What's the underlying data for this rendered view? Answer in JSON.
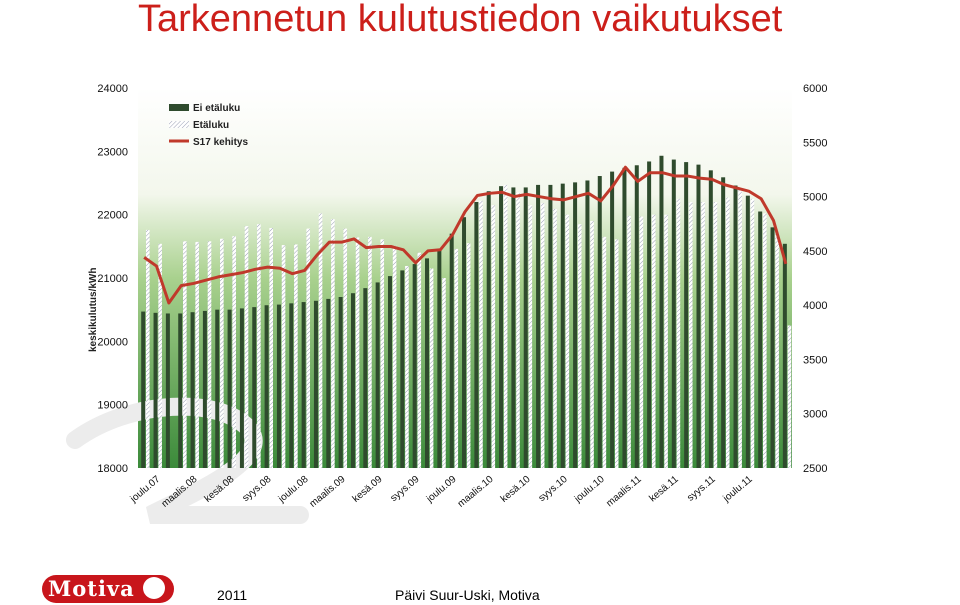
{
  "title": "Tarkennetun kulutustiedon vaikutukset",
  "footer": {
    "year": "2011",
    "author": "Päivi Suur-Uski, Motiva"
  },
  "logo": {
    "text": "Motiva"
  },
  "colors": {
    "title": "#cc1f1a",
    "bar_dark": "#2f4b2d",
    "bar_hatched": "#ffffff",
    "line": "#c0392b",
    "plot_bg_top": "#ffffff",
    "plot_bg_bottom": "#3b8a3a",
    "logo": "#c8151b"
  },
  "chart_data": {
    "type": "bar",
    "title": "",
    "ylabel": "keskikulutus/kWh",
    "ylim": [
      18000,
      24000
    ],
    "y2lim": [
      2500,
      6000
    ],
    "yticks": [
      18000,
      19000,
      20000,
      21000,
      22000,
      23000,
      24000
    ],
    "y2ticks": [
      2500,
      3000,
      3500,
      4000,
      4500,
      5000,
      5500,
      6000
    ],
    "x_tick_labels": [
      "joulu.07",
      "maalis.08",
      "kesä.08",
      "syys.08",
      "joulu.08",
      "maalis.09",
      "kesä.09",
      "syys.09",
      "joulu.09",
      "maalis.10",
      "kesä.10",
      "syys.10",
      "joulu.10",
      "maalis.11",
      "kesä.11",
      "syys.11",
      "joulu.11"
    ],
    "legend": {
      "placement": "top-left",
      "entries": [
        "Ei etäluku",
        "Etäluku",
        "S17 kehitys"
      ]
    },
    "grid": false,
    "series": [
      {
        "name": "Ei etäluku",
        "kind": "bar",
        "axis": "left",
        "values": [
          20470,
          20450,
          20440,
          20440,
          20460,
          20480,
          20500,
          20500,
          20520,
          20540,
          20570,
          20580,
          20600,
          20620,
          20640,
          20670,
          20700,
          20760,
          20840,
          20930,
          21030,
          21120,
          21220,
          21310,
          21440,
          21700,
          21960,
          22200,
          22370,
          22450,
          22430,
          22430,
          22470,
          22470,
          22490,
          22510,
          22540,
          22610,
          22680,
          22740,
          22780,
          22840,
          22930,
          22870,
          22830,
          22790,
          22700,
          22590,
          22460,
          22300,
          22050,
          21800,
          21540
        ]
      },
      {
        "name": "Etäluku",
        "kind": "bar",
        "axis": "left",
        "values": [
          21760,
          21540,
          null,
          21580,
          21570,
          21580,
          21620,
          21660,
          21820,
          21850,
          21790,
          21520,
          21530,
          21780,
          22020,
          21930,
          21780,
          21640,
          21650,
          21610,
          21510,
          21190,
          21400,
          21150,
          21000,
          21460,
          21550,
          22220,
          22150,
          22470,
          22350,
          22150,
          22180,
          22090,
          22000,
          21850,
          21900,
          21650,
          21610,
          21980,
          21970,
          22000,
          22000,
          22250,
          22200,
          22200,
          22200,
          22270,
          22400,
          22250,
          22020,
          21700,
          20250
        ]
      },
      {
        "name": "S17 kehitys",
        "kind": "line",
        "axis": "right",
        "values": [
          4440,
          4360,
          4020,
          4180,
          4200,
          4230,
          4260,
          4280,
          4300,
          4330,
          4350,
          4340,
          4290,
          4320,
          4460,
          4580,
          4580,
          4610,
          4530,
          4540,
          4540,
          4510,
          4390,
          4500,
          4510,
          4650,
          4860,
          5010,
          5030,
          5040,
          5000,
          5020,
          5000,
          4980,
          4970,
          5000,
          5030,
          4960,
          5100,
          5270,
          5140,
          5220,
          5220,
          5190,
          5190,
          5170,
          5160,
          5110,
          5080,
          5050,
          4980,
          4780,
          4380
        ]
      }
    ]
  }
}
